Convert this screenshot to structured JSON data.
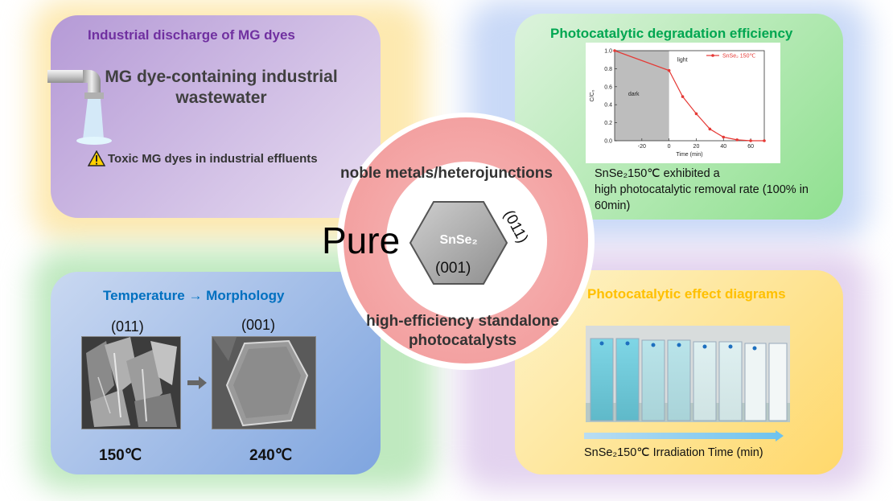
{
  "panels": {
    "industrial": {
      "title": "Industrial discharge of MG dyes",
      "heading_line1": "MG dye-containing industrial",
      "heading_line2": "wastewater",
      "warning_icon": "warning-triangle-icon",
      "warning_text": "Toxic MG dyes in industrial effluents"
    },
    "degradation": {
      "title": "Photocatalytic degradation efficiency",
      "caption_line1": "SnSe₂150℃ exhibited a",
      "caption_line2": "high photocatalytic removal rate (100% in",
      "caption_line3": "60min)"
    },
    "morphology": {
      "title": "Temperature → Morphology",
      "left_facet": "(011)",
      "right_facet": "(001)",
      "left_temp": "150℃",
      "right_temp": "240℃",
      "arrow_icon": "right-arrow-icon"
    },
    "effect": {
      "title": "Photocatalytic effect diagrams",
      "caption": "SnSe₂150℃ Irradiation Time (min)"
    }
  },
  "center": {
    "pure": "Pure",
    "crystal_label": "SnSe₂",
    "facet_side": "(011)",
    "facet_bottom": "(001)",
    "top_text": "noble metals/heterojunctions",
    "bottom_line1": "high-efficiency standalone",
    "bottom_line2": "photocatalysts"
  },
  "chart_data": {
    "type": "line",
    "xlabel": "Time (min)",
    "ylabel": "C/C₀",
    "xlim": [
      -40,
      70
    ],
    "ylim": [
      0,
      1.0
    ],
    "x_ticks": [
      -20,
      0,
      20,
      40,
      60
    ],
    "y_ticks": [
      0.0,
      0.2,
      0.4,
      0.6,
      0.8,
      1.0
    ],
    "dark_region": [
      -40,
      0
    ],
    "dark_label": "dark",
    "light_label": "light",
    "legend_position": "top-right",
    "series": [
      {
        "name": "SnSe₂ 150℃",
        "color": "#e53935",
        "x": [
          -40,
          0,
          10,
          20,
          30,
          40,
          50,
          60,
          70
        ],
        "y": [
          1.0,
          0.78,
          0.49,
          0.3,
          0.13,
          0.04,
          0.01,
          0.0,
          0.0
        ]
      }
    ]
  },
  "colors": {
    "industrial_title": "#7030a0",
    "degradation_title": "#00a651",
    "morphology_title": "#0070c0",
    "effect_title": "#ffc000",
    "ring": "#f4a6a6"
  }
}
